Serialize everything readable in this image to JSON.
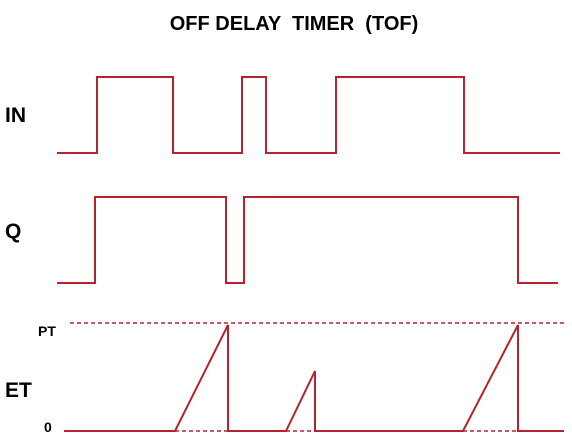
{
  "title": "OFF DELAY  TIMER  (TOF)",
  "signals": {
    "in_label": "IN",
    "q_label": "Q",
    "et_label": "ET"
  },
  "levels": {
    "pt_label": "PT",
    "zero_label": "0"
  },
  "colors": {
    "waveform": "#b5242e",
    "text": "#000000",
    "background": "#ffffff"
  }
}
